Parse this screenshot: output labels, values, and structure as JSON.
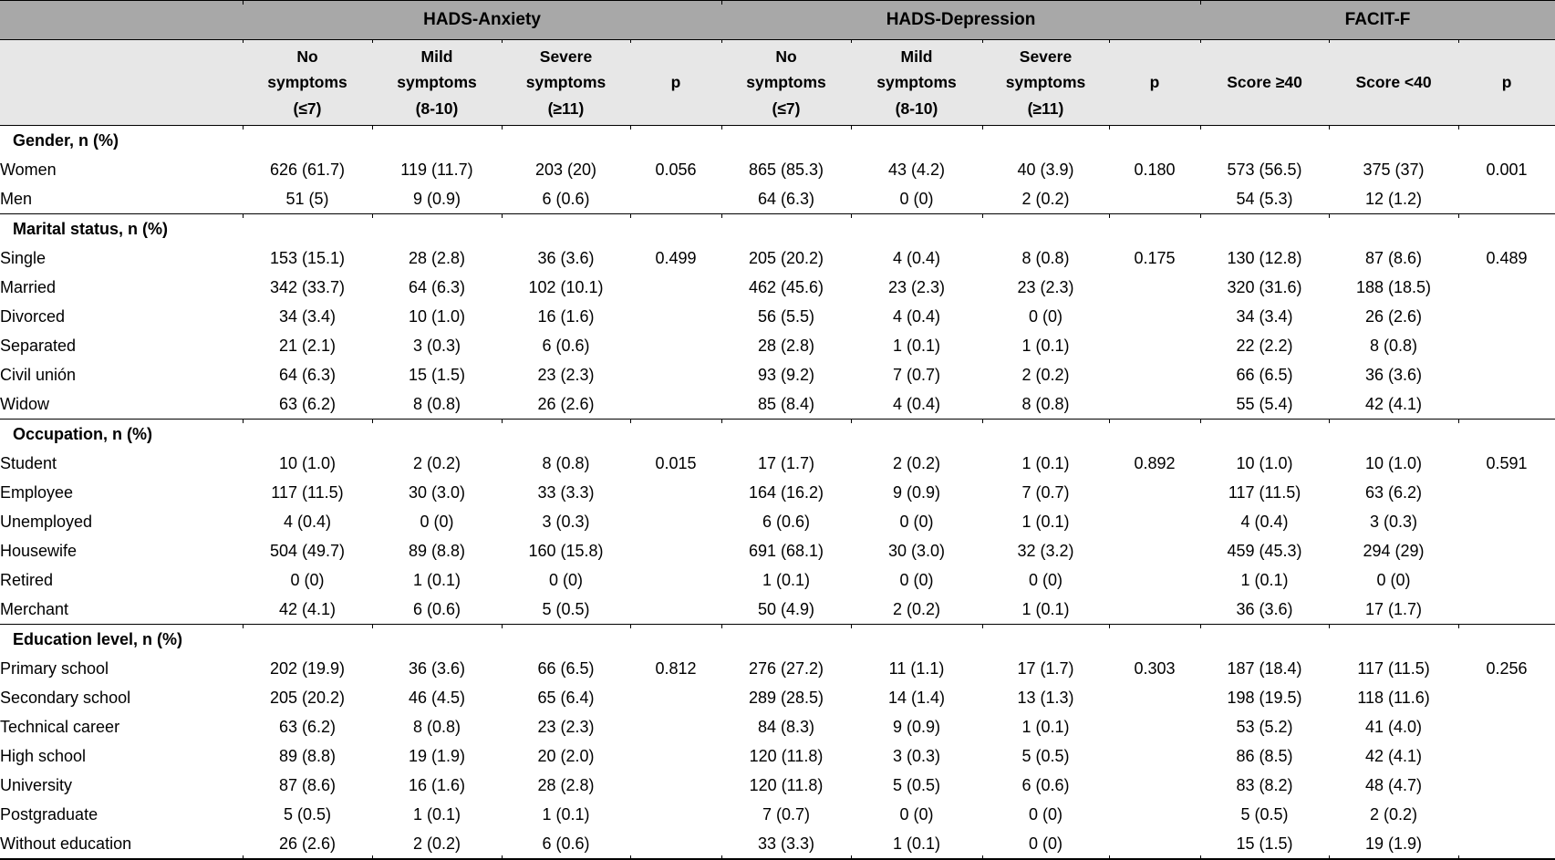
{
  "colors": {
    "band_background": "#a8a8a8",
    "column_header_background": "#e7e7e7",
    "body_background": "#ffffff",
    "border": "#000000"
  },
  "table": {
    "group_header": {
      "corner": "",
      "groups": [
        {
          "label": "HADS-Anxiety",
          "colspan": 4
        },
        {
          "label": "HADS-Depression",
          "colspan": 4
        },
        {
          "label": "FACIT-F",
          "colspan": 3
        }
      ]
    },
    "column_headers": [
      "",
      "No\nsymptoms\n(≤7)",
      "Mild\nsymptoms\n(8-10)",
      "Severe\nsymptoms\n(≥11)",
      "p",
      "No\nsymptoms\n(≤7)",
      "Mild\nsymptoms\n(8-10)",
      "Severe\nsymptoms\n(≥11)",
      "p",
      "Score ≥40",
      "Score <40",
      "p"
    ],
    "sections": [
      {
        "title": "Gender, n (%)",
        "rows": [
          {
            "label": "Women",
            "cells": [
              "626 (61.7)",
              "119 (11.7)",
              "203 (20)",
              "0.056",
              "865 (85.3)",
              "43 (4.2)",
              "40 (3.9)",
              "0.180",
              "573 (56.5)",
              "375 (37)",
              "0.001"
            ]
          },
          {
            "label": "Men",
            "cells": [
              "51 (5)",
              "9 (0.9)",
              "6 (0.6)",
              "",
              "64 (6.3)",
              "0 (0)",
              "2 (0.2)",
              "",
              "54 (5.3)",
              "12 (1.2)",
              ""
            ]
          }
        ]
      },
      {
        "title": "Marital status, n (%)",
        "rows": [
          {
            "label": "Single",
            "cells": [
              "153 (15.1)",
              "28 (2.8)",
              "36 (3.6)",
              "0.499",
              "205 (20.2)",
              "4 (0.4)",
              "8 (0.8)",
              "0.175",
              "130 (12.8)",
              "87 (8.6)",
              "0.489"
            ]
          },
          {
            "label": "Married",
            "cells": [
              "342 (33.7)",
              "64 (6.3)",
              "102 (10.1)",
              "",
              "462 (45.6)",
              "23 (2.3)",
              "23 (2.3)",
              "",
              "320 (31.6)",
              "188 (18.5)",
              ""
            ]
          },
          {
            "label": "Divorced",
            "cells": [
              "34 (3.4)",
              "10 (1.0)",
              "16 (1.6)",
              "",
              "56 (5.5)",
              "4 (0.4)",
              "0 (0)",
              "",
              "34 (3.4)",
              "26 (2.6)",
              ""
            ]
          },
          {
            "label": "Separated",
            "cells": [
              "21 (2.1)",
              "3 (0.3)",
              "6 (0.6)",
              "",
              "28 (2.8)",
              "1 (0.1)",
              "1 (0.1)",
              "",
              "22 (2.2)",
              "8 (0.8)",
              ""
            ]
          },
          {
            "label": "Civil unión",
            "cells": [
              "64 (6.3)",
              "15 (1.5)",
              "23 (2.3)",
              "",
              "93 (9.2)",
              "7 (0.7)",
              "2 (0.2)",
              "",
              "66 (6.5)",
              "36 (3.6)",
              ""
            ]
          },
          {
            "label": "Widow",
            "cells": [
              "63 (6.2)",
              "8 (0.8)",
              "26 (2.6)",
              "",
              "85 (8.4)",
              "4 (0.4)",
              "8 (0.8)",
              "",
              "55 (5.4)",
              "42 (4.1)",
              ""
            ]
          }
        ]
      },
      {
        "title": "Occupation, n (%)",
        "rows": [
          {
            "label": "Student",
            "cells": [
              "10 (1.0)",
              "2 (0.2)",
              "8 (0.8)",
              "0.015",
              "17 (1.7)",
              "2 (0.2)",
              "1 (0.1)",
              "0.892",
              "10 (1.0)",
              "10 (1.0)",
              "0.591"
            ]
          },
          {
            "label": "Employee",
            "cells": [
              "117 (11.5)",
              "30 (3.0)",
              "33 (3.3)",
              "",
              "164 (16.2)",
              "9 (0.9)",
              "7 (0.7)",
              "",
              "117 (11.5)",
              "63 (6.2)",
              ""
            ]
          },
          {
            "label": "Unemployed",
            "cells": [
              "4 (0.4)",
              "0 (0)",
              "3 (0.3)",
              "",
              "6 (0.6)",
              "0 (0)",
              "1 (0.1)",
              "",
              "4 (0.4)",
              "3 (0.3)",
              ""
            ]
          },
          {
            "label": "Housewife",
            "cells": [
              "504 (49.7)",
              "89 (8.8)",
              "160 (15.8)",
              "",
              "691 (68.1)",
              "30 (3.0)",
              "32 (3.2)",
              "",
              "459 (45.3)",
              "294 (29)",
              ""
            ]
          },
          {
            "label": "Retired",
            "cells": [
              "0 (0)",
              "1 (0.1)",
              "0 (0)",
              "",
              "1 (0.1)",
              "0 (0)",
              "0 (0)",
              "",
              "1 (0.1)",
              "0 (0)",
              ""
            ]
          },
          {
            "label": "Merchant",
            "cells": [
              "42 (4.1)",
              "6 (0.6)",
              "5 (0.5)",
              "",
              "50 (4.9)",
              "2 (0.2)",
              "1 (0.1)",
              "",
              "36 (3.6)",
              "17 (1.7)",
              ""
            ]
          }
        ]
      },
      {
        "title": "Education level, n (%)",
        "rows": [
          {
            "label": "Primary school",
            "cells": [
              "202 (19.9)",
              "36 (3.6)",
              "66 (6.5)",
              "0.812",
              "276 (27.2)",
              "11 (1.1)",
              "17 (1.7)",
              "0.303",
              "187 (18.4)",
              "117 (11.5)",
              "0.256"
            ]
          },
          {
            "label": "Secondary school",
            "cells": [
              "205 (20.2)",
              "46 (4.5)",
              "65 (6.4)",
              "",
              "289 (28.5)",
              "14 (1.4)",
              "13 (1.3)",
              "",
              "198 (19.5)",
              "118 (11.6)",
              ""
            ]
          },
          {
            "label": "Technical career",
            "cells": [
              "63 (6.2)",
              "8 (0.8)",
              "23 (2.3)",
              "",
              "84 (8.3)",
              "9 (0.9)",
              "1 (0.1)",
              "",
              "53 (5.2)",
              "41 (4.0)",
              ""
            ]
          },
          {
            "label": "High school",
            "cells": [
              "89 (8.8)",
              "19 (1.9)",
              "20 (2.0)",
              "",
              "120 (11.8)",
              "3 (0.3)",
              "5 (0.5)",
              "",
              "86 (8.5)",
              "42 (4.1)",
              ""
            ]
          },
          {
            "label": "University",
            "cells": [
              "87 (8.6)",
              "16 (1.6)",
              "28 (2.8)",
              "",
              "120 (11.8)",
              "5 (0.5)",
              "6 (0.6)",
              "",
              "83 (8.2)",
              "48 (4.7)",
              ""
            ]
          },
          {
            "label": "Postgraduate",
            "cells": [
              "5 (0.5)",
              "1 (0.1)",
              "1 (0.1)",
              "",
              "7 (0.7)",
              "0 (0)",
              "0 (0)",
              "",
              "5 (0.5)",
              "2 (0.2)",
              ""
            ]
          },
          {
            "label": "Without education",
            "cells": [
              "26 (2.6)",
              "2 (0.2)",
              "6 (0.6)",
              "",
              "33 (3.3)",
              "1 (0.1)",
              "0 (0)",
              "",
              "15 (1.5)",
              "19 (1.9)",
              ""
            ]
          }
        ]
      }
    ]
  }
}
